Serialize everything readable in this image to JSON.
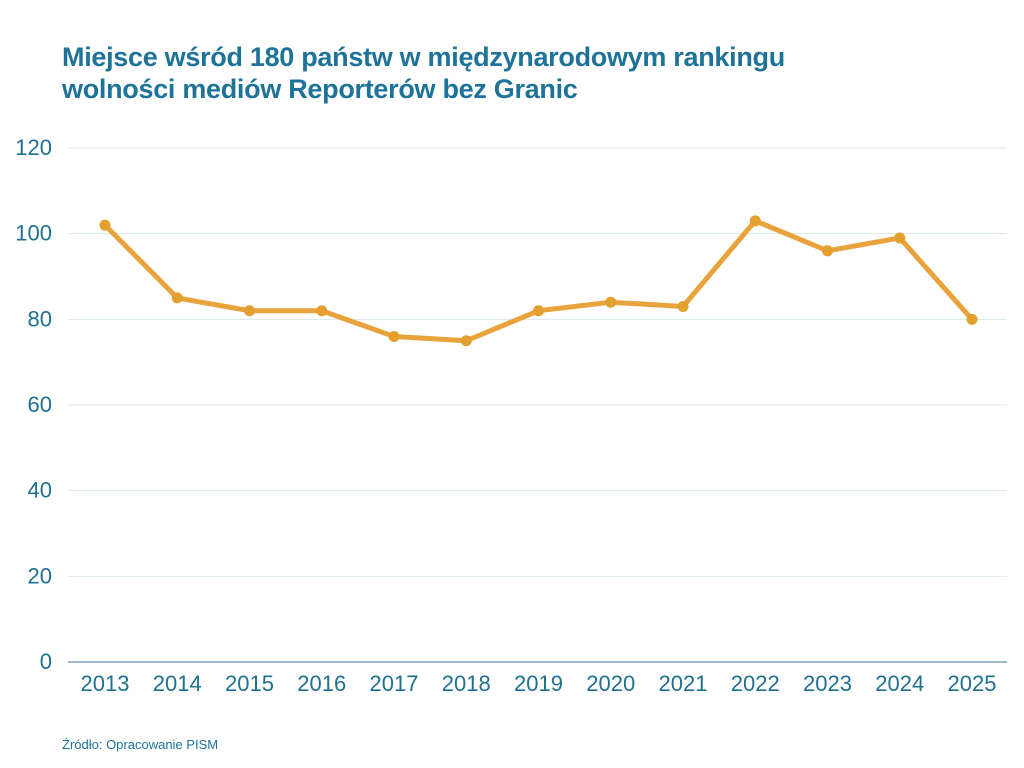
{
  "title_lines": [
    "Miejsce wśród 180 państw w międzynarodowym rankingu",
    "wolności mediów Reporterów bez Granic"
  ],
  "source": "Źródło: Opracowanie PISM",
  "colors": {
    "title": "#1F7398",
    "axis_label": "#20708F",
    "source": "#1F7398",
    "line": "#E8A33C",
    "marker": "#E3A02F",
    "gridline": "#DCE8EE",
    "axis_line": "#A3BCCB",
    "background": "#FFFFFF"
  },
  "chart_data": {
    "type": "line",
    "title": "Miejsce wśród 180 państw w międzynarodowym rankingu wolności mediów Reporterów bez Granic",
    "categories": [
      "2013",
      "2014",
      "2015",
      "2016",
      "2017",
      "2018",
      "2019",
      "2020",
      "2021",
      "2022",
      "2023",
      "2024",
      "2025"
    ],
    "values": [
      102,
      85,
      82,
      82,
      76,
      75,
      82,
      84,
      83,
      103,
      96,
      99,
      80
    ],
    "xlabel": "",
    "ylabel": "",
    "ylim": [
      0,
      120
    ],
    "yticks": [
      0,
      20,
      40,
      60,
      80,
      100,
      120
    ],
    "grid": true,
    "legend": "none",
    "marker": "circle",
    "source": "Źródło: Opracowanie PISM"
  }
}
